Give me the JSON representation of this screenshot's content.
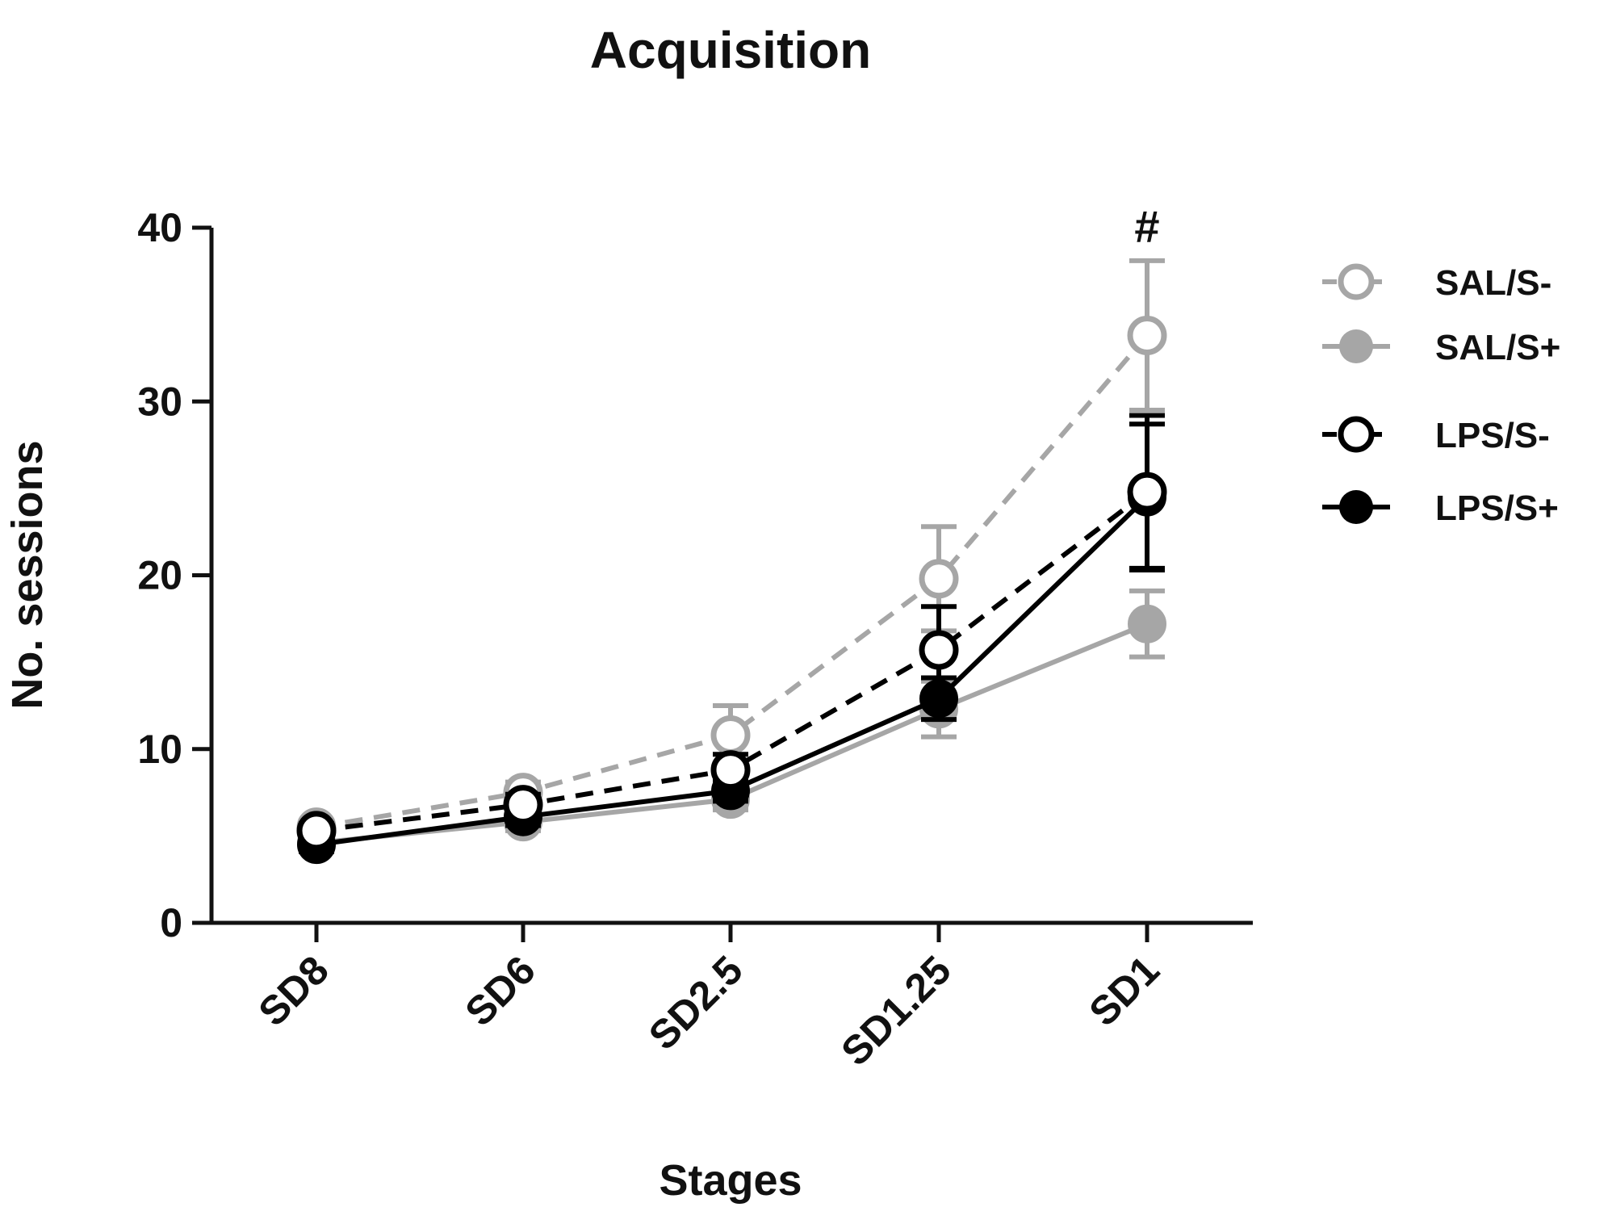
{
  "chart_data": {
    "type": "line",
    "title": "Acquisition",
    "xlabel": "Stages",
    "ylabel": "No. sessions",
    "categories": [
      "SD8",
      "SD6",
      "SD2.5",
      "SD1.25",
      "SD1"
    ],
    "ylim": [
      0,
      40
    ],
    "yticks": [
      0,
      10,
      20,
      30,
      40
    ],
    "grid": false,
    "legend_position": "right",
    "annotations": [
      {
        "category": "SD1",
        "text": "#"
      }
    ],
    "series": [
      {
        "name": "SAL/S-",
        "values": [
          5.5,
          7.5,
          10.8,
          19.8,
          33.8
        ],
        "errors": [
          0.4,
          0.6,
          1.7,
          3.0,
          4.3
        ],
        "color": "#a6a6a6",
        "marker": "open",
        "line": "dashed"
      },
      {
        "name": "SAL/S+",
        "values": [
          4.6,
          5.8,
          7.1,
          12.3,
          17.2
        ],
        "errors": [
          0.4,
          0.5,
          0.6,
          1.6,
          1.9
        ],
        "color": "#a6a6a6",
        "marker": "filled",
        "line": "solid"
      },
      {
        "name": "LPS/S-",
        "values": [
          5.3,
          6.8,
          8.8,
          15.7,
          24.8
        ],
        "errors": [
          0.4,
          0.6,
          0.9,
          2.5,
          4.4
        ],
        "color": "#000000",
        "marker": "open",
        "line": "dashed"
      },
      {
        "name": "LPS/S+",
        "values": [
          4.5,
          6.1,
          7.6,
          12.9,
          24.5
        ],
        "errors": [
          0.4,
          0.5,
          0.6,
          1.2,
          4.2
        ],
        "color": "#000000",
        "marker": "filled",
        "line": "solid"
      }
    ]
  }
}
